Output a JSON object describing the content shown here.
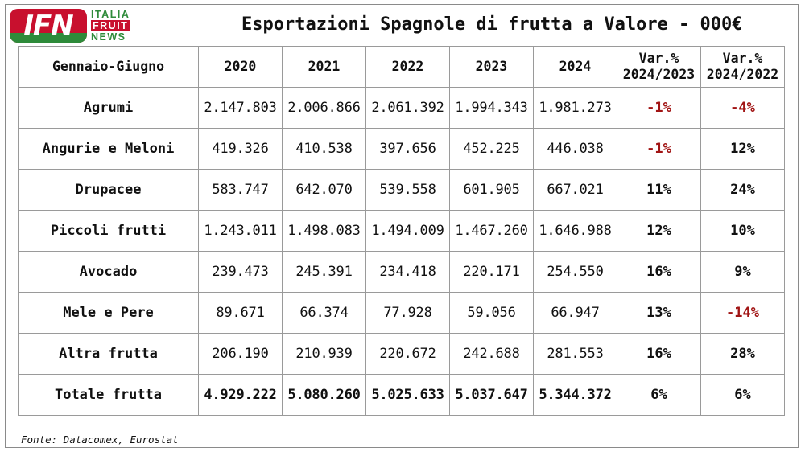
{
  "logo": {
    "mark": "IFN",
    "line1": "ITALIA",
    "line2": "FRUIT",
    "line3": "NEWS"
  },
  "title": "Esportazioni Spagnole di frutta a Valore - 000€",
  "source": "Fonte: Datacomex, Eurostat",
  "colors": {
    "negative": "#a11414",
    "logo_red": "#c8102e",
    "logo_green": "#2e8b3a"
  },
  "chart_data": {
    "type": "table",
    "title": "Esportazioni Spagnole di frutta a Valore - 000€",
    "period_header": "Gennaio-Giugno",
    "columns": [
      "2020",
      "2021",
      "2022",
      "2023",
      "2024"
    ],
    "var_headers": [
      {
        "line1": "Var.%",
        "line2": "2024/2023"
      },
      {
        "line1": "Var.%",
        "line2": "2024/2022"
      }
    ],
    "rows": [
      {
        "label": "Agrumi",
        "values": [
          "2.147.803",
          "2.006.866",
          "2.061.392",
          "1.994.343",
          "1.981.273"
        ],
        "var": [
          "-1%",
          "-4%"
        ]
      },
      {
        "label": "Angurie e Meloni",
        "values": [
          "419.326",
          "410.538",
          "397.656",
          "452.225",
          "446.038"
        ],
        "var": [
          "-1%",
          "12%"
        ]
      },
      {
        "label": "Drupacee",
        "values": [
          "583.747",
          "642.070",
          "539.558",
          "601.905",
          "667.021"
        ],
        "var": [
          "11%",
          "24%"
        ]
      },
      {
        "label": "Piccoli frutti",
        "values": [
          "1.243.011",
          "1.498.083",
          "1.494.009",
          "1.467.260",
          "1.646.988"
        ],
        "var": [
          "12%",
          "10%"
        ]
      },
      {
        "label": "Avocado",
        "values": [
          "239.473",
          "245.391",
          "234.418",
          "220.171",
          "254.550"
        ],
        "var": [
          "16%",
          "9%"
        ]
      },
      {
        "label": "Mele e Pere",
        "values": [
          "89.671",
          "66.374",
          "77.928",
          "59.056",
          "66.947"
        ],
        "var": [
          "13%",
          "-14%"
        ]
      },
      {
        "label": "Altra frutta",
        "values": [
          "206.190",
          "210.939",
          "220.672",
          "242.688",
          "281.553"
        ],
        "var": [
          "16%",
          "28%"
        ]
      },
      {
        "label": "Totale frutta",
        "values": [
          "4.929.222",
          "5.080.260",
          "5.025.633",
          "5.037.647",
          "5.344.372"
        ],
        "var": [
          "6%",
          "6%"
        ],
        "total": true
      }
    ]
  }
}
